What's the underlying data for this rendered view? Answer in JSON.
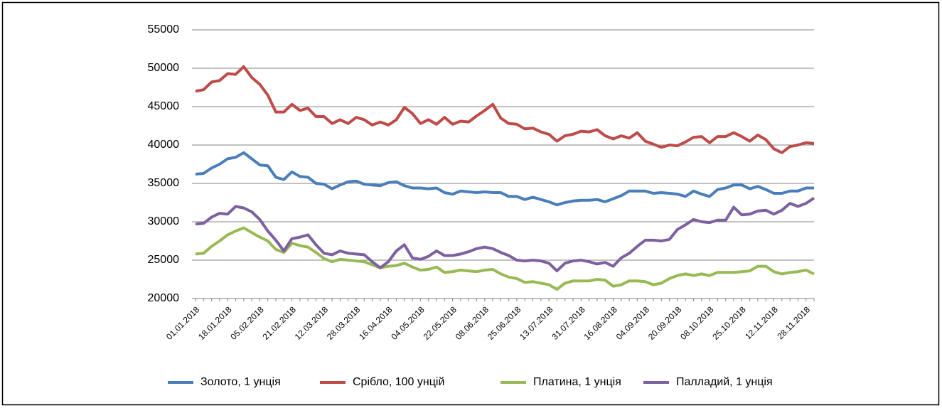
{
  "chart_data": {
    "type": "line",
    "categories": [
      "01.01.2018",
      null,
      null,
      null,
      "18.01.2018",
      null,
      null,
      null,
      "05.02.2018",
      null,
      null,
      null,
      "21.02.2018",
      null,
      null,
      null,
      "12.03.2018",
      null,
      null,
      null,
      "28.03.2018",
      null,
      null,
      null,
      "16.04.2018",
      null,
      null,
      null,
      "04.05.2018",
      null,
      null,
      null,
      "22.05.2018",
      null,
      null,
      null,
      "08.06.2018",
      null,
      null,
      null,
      "25.06.2018",
      null,
      null,
      null,
      "13.07.2018",
      null,
      null,
      null,
      "31.07.2018",
      null,
      null,
      null,
      "16.08.2018",
      null,
      null,
      null,
      "04.09.2018",
      null,
      null,
      null,
      "20.09.2018",
      null,
      null,
      null,
      "08.10.2018",
      null,
      null,
      null,
      "25.10.2018",
      null,
      null,
      null,
      "12.11.2018",
      null,
      null,
      null,
      "28.11.2018",
      null
    ],
    "series": [
      {
        "name": "Золото, 1 унція",
        "color": "#4a7ebb",
        "values": [
          36200,
          36300,
          37000,
          37500,
          38200,
          38400,
          39000,
          38200,
          37400,
          37300,
          35800,
          35500,
          36500,
          35900,
          35800,
          35000,
          34900,
          34300,
          34800,
          35200,
          35300,
          34900,
          34800,
          34700,
          35100,
          35200,
          34700,
          34400,
          34400,
          34300,
          34400,
          33800,
          33600,
          34000,
          33900,
          33800,
          33900,
          33800,
          33800,
          33300,
          33300,
          32900,
          33200,
          32900,
          32600,
          32200,
          32500,
          32700,
          32800,
          32800,
          32900,
          32600,
          33000,
          33400,
          34000,
          34000,
          34000,
          33700,
          33800,
          33700,
          33600,
          33300,
          34000,
          33600,
          33300,
          34200,
          34400,
          34800,
          34800,
          34300,
          34600,
          34200,
          33700,
          33700,
          34000,
          34000,
          34400,
          34400
        ]
      },
      {
        "name": "Срібло, 100 унцій",
        "color": "#be4b48",
        "values": [
          47000,
          47200,
          48200,
          48400,
          49300,
          49200,
          50200,
          48800,
          47900,
          46500,
          44300,
          44300,
          45300,
          44500,
          44800,
          43700,
          43700,
          42800,
          43300,
          42800,
          43600,
          43300,
          42600,
          43000,
          42600,
          43300,
          44900,
          44100,
          42800,
          43300,
          42700,
          43600,
          42700,
          43100,
          43000,
          43800,
          44500,
          45300,
          43500,
          42800,
          42700,
          42100,
          42200,
          41700,
          41400,
          40500,
          41200,
          41400,
          41800,
          41700,
          42000,
          41200,
          40800,
          41200,
          40900,
          41600,
          40500,
          40100,
          39700,
          40000,
          39900,
          40400,
          41000,
          41100,
          40300,
          41100,
          41100,
          41600,
          41100,
          40500,
          41300,
          40700,
          39500,
          39000,
          39800,
          40000,
          40300,
          40200
        ]
      },
      {
        "name": "Платина, 1 унція",
        "color": "#98b954",
        "values": [
          25800,
          25900,
          26800,
          27500,
          28300,
          28800,
          29200,
          28600,
          28000,
          27500,
          26400,
          26000,
          27200,
          26900,
          26700,
          26000,
          25200,
          24800,
          25100,
          25000,
          24900,
          24800,
          24400,
          24000,
          24200,
          24300,
          24600,
          24100,
          23700,
          23800,
          24100,
          23400,
          23500,
          23700,
          23600,
          23500,
          23700,
          23800,
          23200,
          22800,
          22600,
          22100,
          22200,
          22000,
          21800,
          21200,
          22000,
          22300,
          22300,
          22300,
          22500,
          22400,
          21600,
          21800,
          22300,
          22300,
          22200,
          21800,
          22000,
          22600,
          23000,
          23200,
          23000,
          23200,
          23000,
          23400,
          23400,
          23400,
          23500,
          23600,
          24200,
          24200,
          23500,
          23200,
          23400,
          23500,
          23700,
          23200
        ]
      },
      {
        "name": "Палладий, 1 унція",
        "color": "#7d60a0",
        "values": [
          29700,
          29800,
          30600,
          31100,
          31000,
          32000,
          31800,
          31300,
          30300,
          28800,
          27600,
          26200,
          27800,
          28000,
          28300,
          27000,
          25900,
          25700,
          26200,
          25900,
          25800,
          25700,
          24800,
          24000,
          24800,
          26200,
          27000,
          25300,
          25100,
          25500,
          26200,
          25600,
          25600,
          25800,
          26100,
          26500,
          26700,
          26500,
          26000,
          25600,
          25000,
          24900,
          25000,
          24900,
          24600,
          23600,
          24600,
          24900,
          25000,
          24800,
          24500,
          24700,
          24200,
          25300,
          25900,
          26800,
          27600,
          27600,
          27500,
          27700,
          29000,
          29600,
          30300,
          30000,
          29900,
          30200,
          30200,
          31900,
          30900,
          31000,
          31400,
          31500,
          31000,
          31500,
          32400,
          32000,
          32400,
          33100
        ]
      }
    ],
    "ylim": [
      20000,
      55000
    ],
    "yticks": [
      20000,
      25000,
      30000,
      35000,
      40000,
      45000,
      50000,
      55000
    ],
    "grid": true,
    "legend": "bottom"
  }
}
